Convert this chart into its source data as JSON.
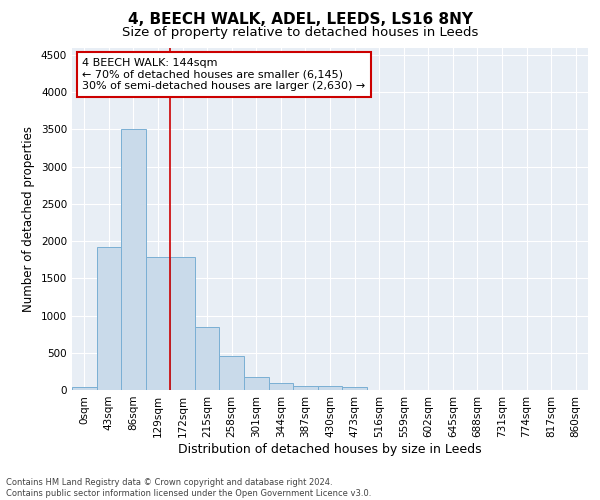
{
  "title": "4, BEECH WALK, ADEL, LEEDS, LS16 8NY",
  "subtitle": "Size of property relative to detached houses in Leeds",
  "xlabel": "Distribution of detached houses by size in Leeds",
  "ylabel": "Number of detached properties",
  "bar_color": "#c9daea",
  "bar_edge_color": "#7aafd4",
  "background_color": "#e8eef5",
  "grid_color": "#ffffff",
  "categories": [
    "0sqm",
    "43sqm",
    "86sqm",
    "129sqm",
    "172sqm",
    "215sqm",
    "258sqm",
    "301sqm",
    "344sqm",
    "387sqm",
    "430sqm",
    "473sqm",
    "516sqm",
    "559sqm",
    "602sqm",
    "645sqm",
    "688sqm",
    "731sqm",
    "774sqm",
    "817sqm",
    "860sqm"
  ],
  "values": [
    40,
    1920,
    3500,
    1780,
    1780,
    850,
    460,
    170,
    100,
    60,
    55,
    45,
    0,
    0,
    0,
    0,
    0,
    0,
    0,
    0,
    0
  ],
  "ylim": [
    0,
    4600
  ],
  "yticks": [
    0,
    500,
    1000,
    1500,
    2000,
    2500,
    3000,
    3500,
    4000,
    4500
  ],
  "property_line_color": "#cc0000",
  "property_line_bin": 3,
  "annotation_line1": "4 BEECH WALK: 144sqm",
  "annotation_line2": "← 70% of detached houses are smaller (6,145)",
  "annotation_line3": "30% of semi-detached houses are larger (2,630) →",
  "annotation_box_color": "#ffffff",
  "annotation_box_edge": "#cc0000",
  "footer_line1": "Contains HM Land Registry data © Crown copyright and database right 2024.",
  "footer_line2": "Contains public sector information licensed under the Open Government Licence v3.0.",
  "title_fontsize": 11,
  "subtitle_fontsize": 9.5,
  "xlabel_fontsize": 9,
  "ylabel_fontsize": 8.5,
  "tick_fontsize": 7.5,
  "annotation_fontsize": 8,
  "footer_fontsize": 6
}
